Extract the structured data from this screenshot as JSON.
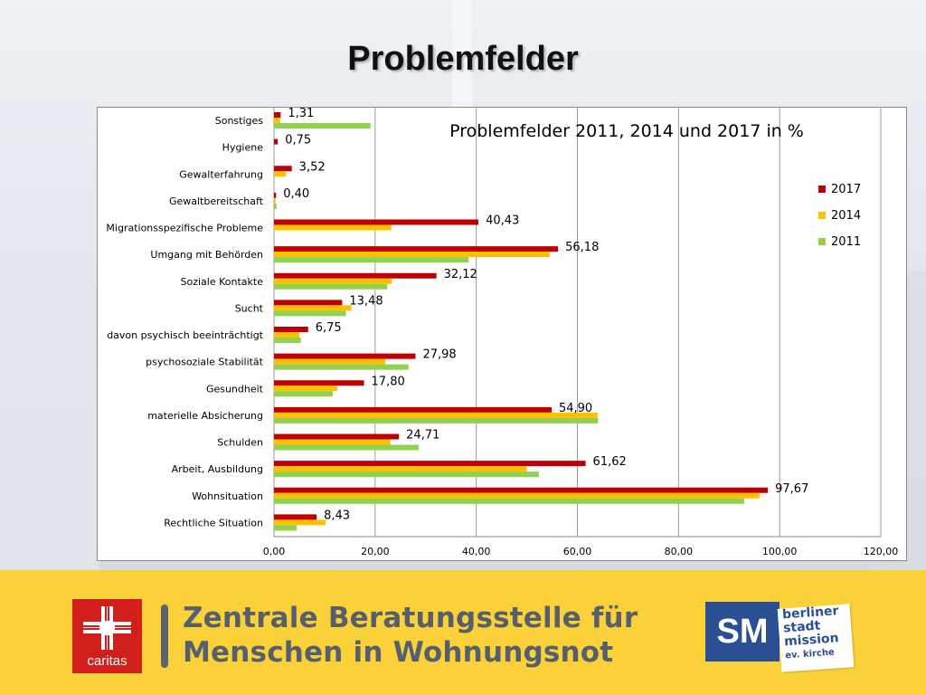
{
  "slide": {
    "title": "Problemfelder"
  },
  "chart_data": {
    "type": "bar",
    "orientation": "horizontal",
    "title": "Problemfelder 2011, 2014 und 2017 in %",
    "xlim": [
      0,
      120
    ],
    "x_ticks": [
      "0,00",
      "20,00",
      "40,00",
      "60,00",
      "80,00",
      "100,00",
      "120,00"
    ],
    "grid": true,
    "legend_position": "right",
    "categories": [
      "Sonstiges",
      "Hygiene",
      "Gewalterfahrung",
      "Gewaltbereitschaft",
      "Migrationsspezifische Probleme",
      "Umgang mit Behörden",
      "Soziale Kontakte",
      "Sucht",
      "davon psychisch beeinträchtigt",
      "psychosoziale Stabilität",
      "Gesundheit",
      "materielle Absicherung",
      "Schulden",
      "Arbeit, Ausbildung",
      "Wohnsituation",
      "Rechtliche Situation"
    ],
    "series": [
      {
        "name": "2017",
        "color": "#c00000",
        "values": [
          1.31,
          0.75,
          3.52,
          0.4,
          40.43,
          56.18,
          32.12,
          13.48,
          6.75,
          27.98,
          17.8,
          54.9,
          24.71,
          61.62,
          97.67,
          8.43
        ]
      },
      {
        "name": "2014",
        "color": "#ffc000",
        "values": [
          1.2,
          0,
          2.4,
          0.3,
          23.2,
          54.5,
          23.3,
          15.3,
          5.0,
          22.0,
          12.5,
          64.0,
          23.0,
          50.0,
          96.0,
          10.2
        ]
      },
      {
        "name": "2011",
        "color": "#92d050",
        "values": [
          19.1,
          0,
          0,
          0.5,
          0,
          38.5,
          22.4,
          14.2,
          5.3,
          26.6,
          11.6,
          64.1,
          28.6,
          52.4,
          93.0,
          4.5
        ]
      }
    ],
    "data_labels": [
      "1,31",
      "0,75",
      "3,52",
      "0,40",
      "40,43",
      "56,18",
      "32,12",
      "13,48",
      "6,75",
      "27,98",
      "17,80",
      "54,90",
      "24,71",
      "61,62",
      "97,67",
      "8,43"
    ]
  },
  "footer": {
    "caritas_label": "caritas",
    "banner_line1": "Zentrale Beratungsstelle für",
    "banner_line2": "Menschen in Wohnungsnot",
    "sm_logo_text": "SM",
    "sm_line1": "berliner",
    "sm_line2": "stadt",
    "sm_line3": "mission",
    "sm_line4": "ev. kirche",
    "colors": {
      "footer_bg": "#fbd13a",
      "caritas_red": "#d21f1b",
      "sm_blue": "#2a4f93"
    }
  }
}
